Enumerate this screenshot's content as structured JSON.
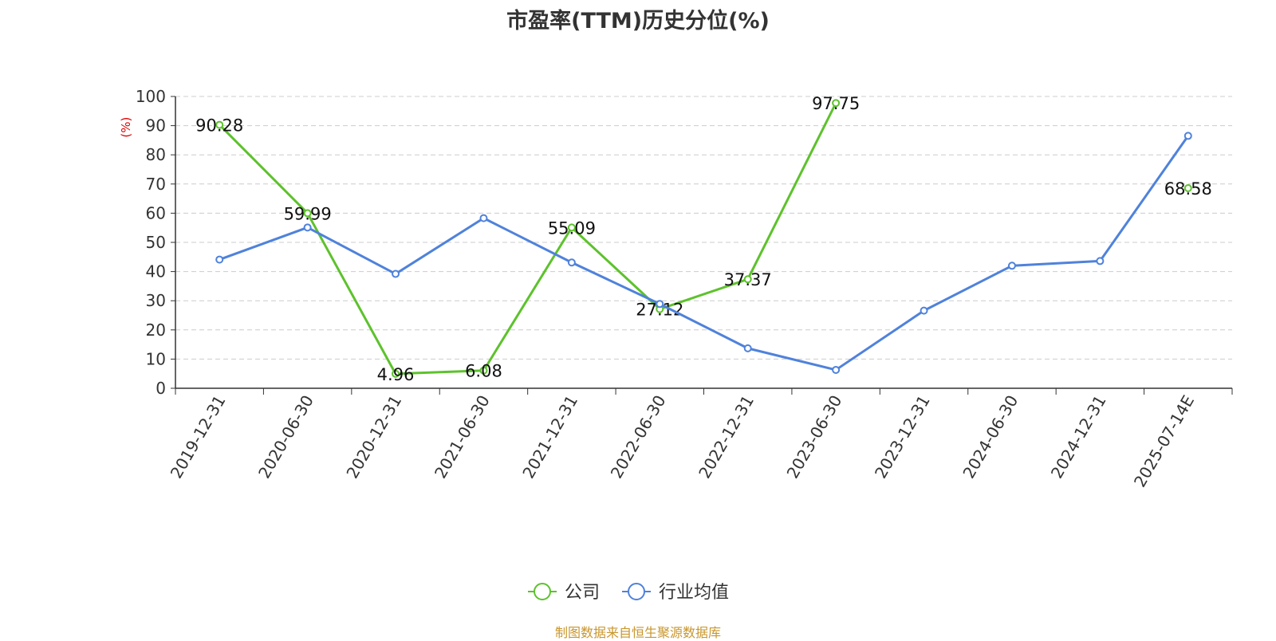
{
  "chart_data": {
    "type": "line",
    "title": "市盈率(TTM)历史分位(%)",
    "ylabel": "(%)",
    "xlabel": "",
    "ylim": [
      0,
      100
    ],
    "yticks": [
      0,
      10,
      20,
      30,
      40,
      50,
      60,
      70,
      80,
      90,
      100
    ],
    "categories": [
      "2019-12-31",
      "2020-06-30",
      "2020-12-31",
      "2021-06-30",
      "2021-12-31",
      "2022-06-30",
      "2022-12-31",
      "2023-06-30",
      "2023-12-31",
      "2024-06-30",
      "2024-12-31",
      "2025-07-14E"
    ],
    "grid": true,
    "legend_position": "bottom",
    "series": [
      {
        "name": "公司",
        "color": "#5dc22c",
        "values": [
          90.28,
          59.99,
          4.96,
          6.08,
          55.09,
          27.12,
          37.37,
          97.75,
          null,
          null,
          null,
          68.58
        ],
        "labels": [
          "90.28",
          "59.99",
          "4.96",
          "6.08",
          "55.09",
          "27.12",
          "37.37",
          "97.75",
          "",
          "",
          "",
          "68.58"
        ]
      },
      {
        "name": "行业均值",
        "color": "#4f82db",
        "values": [
          44.1,
          55.1,
          39.2,
          58.3,
          43.1,
          28.9,
          13.7,
          6.3,
          26.6,
          42.0,
          43.6,
          86.5
        ],
        "labels": []
      }
    ]
  },
  "footer": {
    "source": "制图数据来自恒生聚源数据库"
  }
}
